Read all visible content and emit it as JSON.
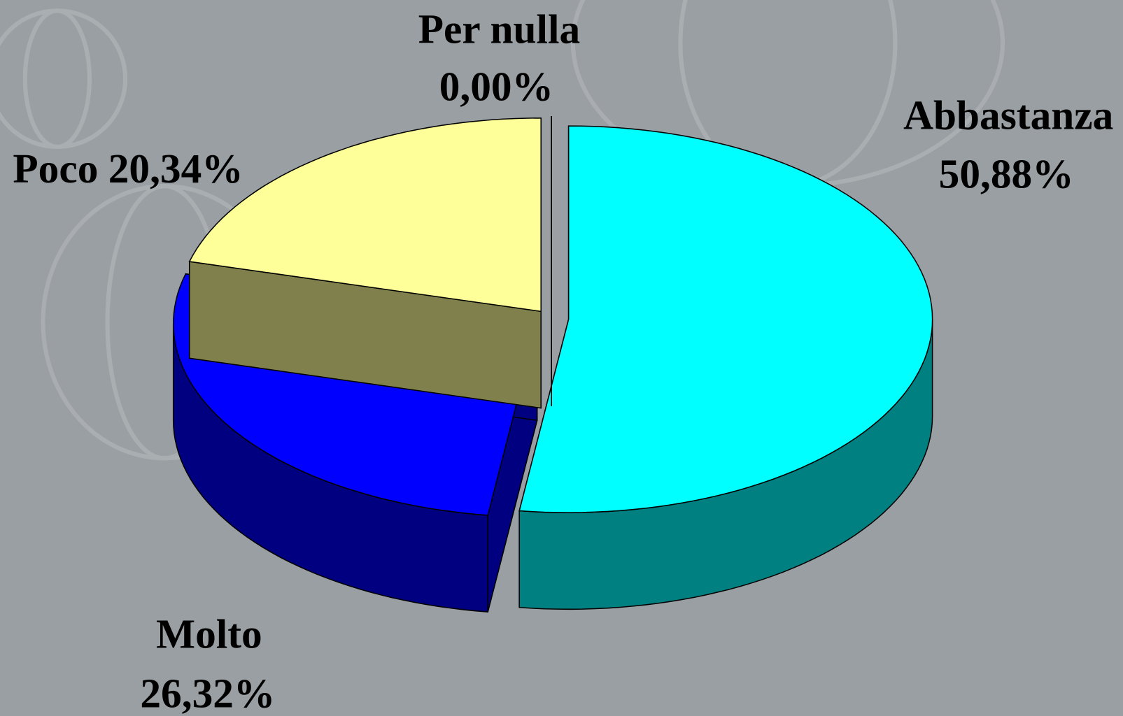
{
  "chart_data": {
    "type": "pie3d",
    "categories": [
      "Abbastanza",
      "Molto",
      "Poco",
      "Per nulla"
    ],
    "values": [
      50.88,
      26.32,
      20.34,
      0.0
    ],
    "value_labels": [
      "50,88%",
      "26,32%",
      "20,34%",
      "0,00%"
    ],
    "colors": [
      "#00ffff",
      "#0000ff",
      "#ffff99",
      "#4b6100"
    ]
  }
}
